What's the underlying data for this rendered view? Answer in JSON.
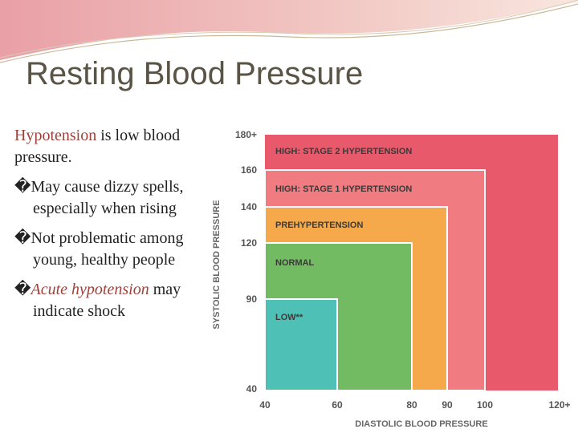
{
  "title": "Resting Blood Pressure",
  "intro": {
    "term": "Hypotension",
    "rest": " is low blood pressure."
  },
  "bullets": [
    {
      "glyph": "�",
      "emphasis": null,
      "text": "May cause dizzy spells, especially when rising"
    },
    {
      "glyph": "�",
      "emphasis": null,
      "text": "Not problematic among young, healthy people"
    },
    {
      "glyph": "�",
      "emphasis": "Acute hypotension",
      "text": " may indicate shock"
    }
  ],
  "figure": {
    "zones": [
      "HIGH: STAGE 2 HYPERTENSION",
      "HIGH: STAGE 1 HYPERTENSION",
      "PREHYPERTENSION",
      "NORMAL",
      "LOW**"
    ],
    "y_ticks": [
      "180+",
      "160",
      "140",
      "120",
      "90",
      "40"
    ],
    "x_ticks": [
      "40",
      "60",
      "80",
      "90",
      "100",
      "120+"
    ],
    "y_axis_title": "SYSTOLIC BLOOD PRESSURE",
    "x_axis_title": "DIASTOLIC BLOOD PRESSURE"
  }
}
